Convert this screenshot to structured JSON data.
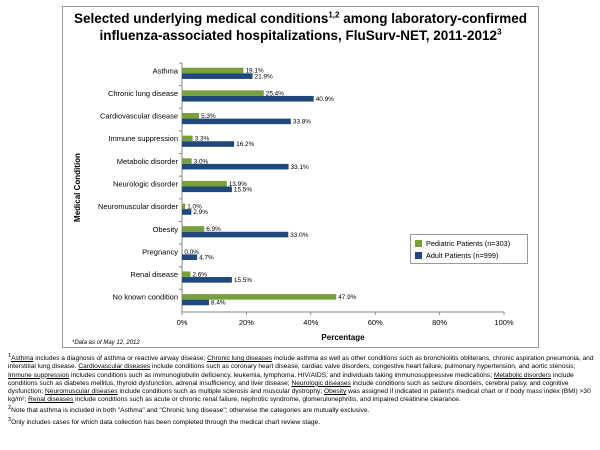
{
  "chart_data": {
    "type": "bar",
    "orientation": "horizontal",
    "title_main": "Selected underlying medical conditions",
    "title_sup": "1,2",
    "title_rest": " among laboratory-confirmed",
    "title_line2": "influenza-associated hospitalizations, FluSurv-NET, 2011-2012",
    "title_line2_sup": "3",
    "xlabel": "Percentage",
    "ylabel": "Medical Condition",
    "xlim": [
      0,
      100
    ],
    "xticks": [
      "0%",
      "20%",
      "40%",
      "60%",
      "80%",
      "100%"
    ],
    "categories": [
      "Asthma",
      "Chronic lung disease",
      "Cardiovascular disease",
      "Immune suppression",
      "Metabolic disorder",
      "Neurologic disorder",
      "Neuromuscular disorder",
      "Obesity",
      "Pregnancy",
      "Renal disease",
      "No known condition"
    ],
    "series": [
      {
        "name": "Pediatric Patients (n=303)",
        "color": "#77a03a",
        "values": [
          19.1,
          25.4,
          5.3,
          3.3,
          3.0,
          13.9,
          1.0,
          6.9,
          0.0,
          2.6,
          47.9
        ],
        "labels": [
          "19.1%",
          "25.4%",
          "5.3%",
          "3.3%",
          "3.0%",
          "13.9%",
          "1.0%",
          "6.9%",
          "0.0%",
          "2.6%",
          "47.9%"
        ]
      },
      {
        "name": "Adult Patients (n=999)",
        "color": "#1f497d",
        "values": [
          21.9,
          40.9,
          33.8,
          16.2,
          33.1,
          15.5,
          2.9,
          33.0,
          4.7,
          15.5,
          8.4
        ],
        "labels": [
          "21.9%",
          "40.9%",
          "33.8%",
          "16.2%",
          "33.1%",
          "15.5%",
          "2.9%",
          "33.0%",
          "4.7%",
          "15.5%",
          "8.4%"
        ]
      }
    ],
    "legend_position": "right",
    "note": "*Data as of May 12, 2012"
  },
  "footnotes": {
    "fn1_prefix": "1",
    "fn1_parts": [
      {
        "u": true,
        "t": "Asthma"
      },
      {
        "u": false,
        "t": " includes a diagnosis of asthma or reactive airway disease; "
      },
      {
        "u": true,
        "t": "Chronic lung diseases"
      },
      {
        "u": false,
        "t": " include asthma as well as other conditions such as bronchiolitis obliterans, chronic aspiration pneumonia, and interstitial lung disease. "
      },
      {
        "u": true,
        "t": "Cardiovascular diseases"
      },
      {
        "u": false,
        "t": " include conditions such as coronary heart disease, cardiac valve disorders, congestive heart failure, pulmonary hypertension, and aortic stenosis; "
      },
      {
        "u": true,
        "t": "Immune suppression"
      },
      {
        "u": false,
        "t": " includes conditions such as immunoglobulin deficiency, leukemia, lymphoma, HIV/AIDS, and individuals taking immunosuppressive medications; "
      },
      {
        "u": true,
        "t": "Metabolic disorders"
      },
      {
        "u": false,
        "t": " include conditions such as diabetes mellitus, thyroid dysfunction, adrenal insufficiency, and liver disease; "
      },
      {
        "u": true,
        "t": "Neurologic diseases"
      },
      {
        "u": false,
        "t": " include conditions such as seizure disorders, cerebral palsy, and cognitive dysfunction; "
      },
      {
        "u": true,
        "t": "Neuromuscular diseases"
      },
      {
        "u": false,
        "t": " include conditions such as multiple sclerosis and muscular dystrophy; "
      },
      {
        "u": true,
        "t": "Obesity"
      },
      {
        "u": false,
        "t": " was assigned if indicated in patient's medical chart or if body mass index (BMI) >30 kg/m²; "
      },
      {
        "u": true,
        "t": "Renal diseases"
      },
      {
        "u": false,
        "t": " include conditions such as acute or chronic renal failure, nephrotic syndrome, glomerulonephritis, and impaired creatinine clearance."
      }
    ],
    "fn2_prefix": "2",
    "fn2_text": "Note that asthma is included in both \"Asthma\" and \"Chronic lung disease\"; otherwise the categories are mutually exclusive.",
    "fn3_prefix": "3",
    "fn3_text": "Only includes cases for which data collection has been completed through the medical chart review stage."
  }
}
